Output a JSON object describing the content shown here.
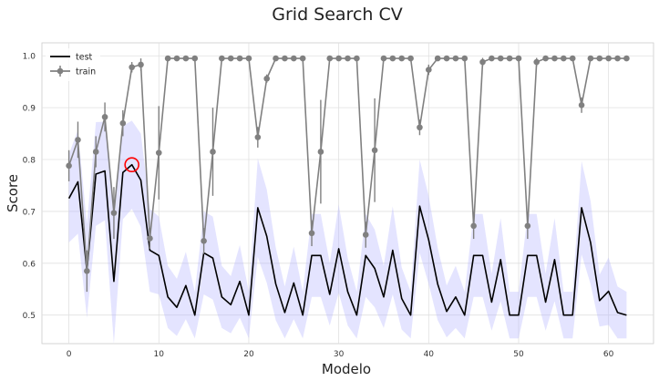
{
  "chart_data": {
    "type": "line",
    "title": "Grid Search CV",
    "xlabel": "Modelo",
    "ylabel": "Score",
    "xlim": [
      -3,
      65
    ],
    "ylim": [
      0.445,
      1.025
    ],
    "xticks": [
      0,
      10,
      20,
      30,
      40,
      50,
      60
    ],
    "yticks": [
      0.5,
      0.6,
      0.7,
      0.8,
      0.9,
      1.0
    ],
    "xtick_labels": [
      "0",
      "10",
      "20",
      "30",
      "40",
      "50",
      "60"
    ],
    "ytick_labels": [
      "0.5",
      "0.6",
      "0.7",
      "0.8",
      "0.9",
      "1.0"
    ],
    "grid": true,
    "legend_position": "top-left",
    "x": [
      0,
      1,
      2,
      3,
      4,
      5,
      6,
      7,
      8,
      9,
      10,
      11,
      12,
      13,
      14,
      15,
      16,
      17,
      18,
      19,
      20,
      21,
      22,
      23,
      24,
      25,
      26,
      27,
      28,
      29,
      30,
      31,
      32,
      33,
      34,
      35,
      36,
      37,
      38,
      39,
      40,
      41,
      42,
      43,
      44,
      45,
      46,
      47,
      48,
      49,
      50,
      51,
      52,
      53,
      54,
      55,
      56,
      57,
      58,
      59,
      60,
      61,
      62
    ],
    "series": [
      {
        "name": "test",
        "color": "#000000",
        "values": [
          0.725,
          0.757,
          0.585,
          0.772,
          0.778,
          0.565,
          0.775,
          0.79,
          0.76,
          0.625,
          0.615,
          0.535,
          0.515,
          0.557,
          0.5,
          0.62,
          0.61,
          0.535,
          0.52,
          0.565,
          0.5,
          0.707,
          0.652,
          0.56,
          0.505,
          0.562,
          0.5,
          0.615,
          0.615,
          0.54,
          0.628,
          0.545,
          0.5,
          0.615,
          0.59,
          0.535,
          0.625,
          0.532,
          0.5,
          0.71,
          0.645,
          0.56,
          0.507,
          0.535,
          0.5,
          0.615,
          0.615,
          0.525,
          0.607,
          0.5,
          0.5,
          0.615,
          0.615,
          0.525,
          0.607,
          0.5,
          0.5,
          0.707,
          0.64,
          0.528,
          0.546,
          0.505,
          0.5
        ],
        "band_width": [
          0.085,
          0.1,
          0.09,
          0.1,
          0.095,
          0.12,
          0.09,
          0.085,
          0.09,
          0.08,
          0.075,
          0.06,
          0.055,
          0.065,
          0.045,
          0.08,
          0.08,
          0.06,
          0.055,
          0.07,
          0.045,
          0.095,
          0.09,
          0.07,
          0.05,
          0.07,
          0.045,
          0.08,
          0.08,
          0.06,
          0.085,
          0.065,
          0.045,
          0.08,
          0.075,
          0.06,
          0.085,
          0.06,
          0.045,
          0.09,
          0.085,
          0.07,
          0.05,
          0.06,
          0.045,
          0.08,
          0.08,
          0.055,
          0.08,
          0.045,
          0.045,
          0.08,
          0.08,
          0.055,
          0.08,
          0.045,
          0.045,
          0.09,
          0.08,
          0.05,
          0.065,
          0.05,
          0.045
        ],
        "band_color": "#b3b3ff"
      },
      {
        "name": "train",
        "color": "#808080",
        "values": [
          0.788,
          0.838,
          0.585,
          0.815,
          0.882,
          0.697,
          0.87,
          0.978,
          0.983,
          0.648,
          0.813,
          0.995,
          0.995,
          0.995,
          0.995,
          0.643,
          0.815,
          0.995,
          0.995,
          0.995,
          0.995,
          0.843,
          0.956,
          0.995,
          0.995,
          0.995,
          0.995,
          0.658,
          0.815,
          0.995,
          0.995,
          0.995,
          0.995,
          0.655,
          0.818,
          0.995,
          0.995,
          0.995,
          0.995,
          0.862,
          0.973,
          0.995,
          0.995,
          0.995,
          0.995,
          0.672,
          0.988,
          0.995,
          0.995,
          0.995,
          0.995,
          0.672,
          0.988,
          0.995,
          0.995,
          0.995,
          0.995,
          0.905,
          0.995,
          0.995,
          0.995,
          0.995,
          0.995
        ],
        "error": [
          0.03,
          0.035,
          0.04,
          0.03,
          0.028,
          0.05,
          0.025,
          0.01,
          0.012,
          0.02,
          0.09,
          0.003,
          0.003,
          0.003,
          0.003,
          0.025,
          0.085,
          0.003,
          0.003,
          0.003,
          0.003,
          0.02,
          0.008,
          0.003,
          0.003,
          0.003,
          0.003,
          0.025,
          0.1,
          0.003,
          0.003,
          0.003,
          0.003,
          0.025,
          0.1,
          0.003,
          0.003,
          0.003,
          0.003,
          0.015,
          0.01,
          0.003,
          0.003,
          0.003,
          0.003,
          0.025,
          0.008,
          0.003,
          0.003,
          0.003,
          0.003,
          0.025,
          0.008,
          0.003,
          0.003,
          0.003,
          0.003,
          0.015,
          0.003,
          0.003,
          0.003,
          0.003,
          0.003
        ]
      }
    ],
    "highlight": {
      "x": 7,
      "y": 0.79,
      "color": "#ff0000"
    }
  },
  "colors": {
    "background": "#ffffff",
    "plot_background": "#ffffff",
    "grid": "#e0e0e0",
    "spine": "#cccccc"
  }
}
